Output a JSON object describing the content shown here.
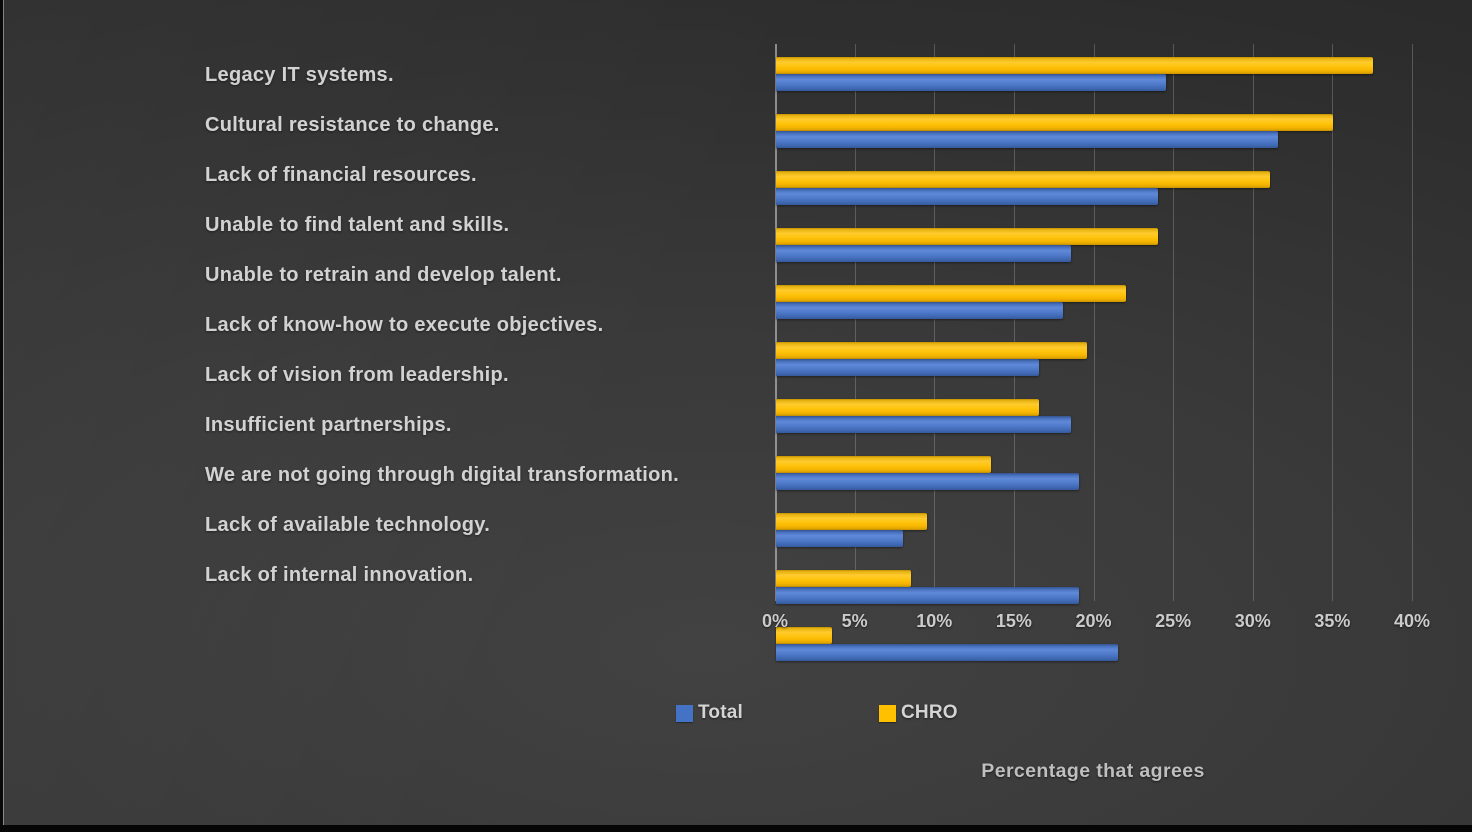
{
  "chart_data": {
    "type": "bar",
    "orientation": "horizontal",
    "title": "",
    "xlabel": "Percentage that agrees",
    "ylabel": "",
    "xlim": [
      0,
      40
    ],
    "x_ticks": [
      "0%",
      "5%",
      "10%",
      "15%",
      "20%",
      "25%",
      "30%",
      "35%",
      "40%"
    ],
    "grid": "vertical",
    "legend_position": "bottom",
    "categories": [
      "Legacy IT systems.",
      "Cultural resistance to change.",
      "Lack of financial resources.",
      "Unable to find talent and skills.",
      "Unable to retrain and develop talent.",
      "Lack of know-how to execute objectives.",
      "Lack of vision from leadership.",
      "Insufficient partnerships.",
      "We are not going through digital transformation.",
      "Lack of available technology.",
      "Lack of internal innovation."
    ],
    "series": [
      {
        "name": "Total",
        "color": "#4472C4",
        "values": [
          24.5,
          31.5,
          24,
          18.5,
          18,
          16.5,
          18.5,
          19,
          8,
          19,
          21.5
        ]
      },
      {
        "name": "CHRO",
        "color": "#FFC000",
        "values": [
          37.5,
          35,
          31,
          24,
          22,
          19.5,
          16.5,
          13.5,
          9.5,
          8.5,
          3.5
        ]
      }
    ],
    "series_draw_order_per_category": [
      "CHRO",
      "Total"
    ]
  },
  "style_colors": {
    "background_center": "#424242",
    "background_edge": "#262626",
    "gridline": "rgba(255,255,255,0.20)",
    "axis_line": "rgba(215,215,215,0.55)",
    "label_text": "#d2d2d2",
    "tick_text": "#cbcbcb",
    "axis_title_text": "#bfbfbf"
  }
}
